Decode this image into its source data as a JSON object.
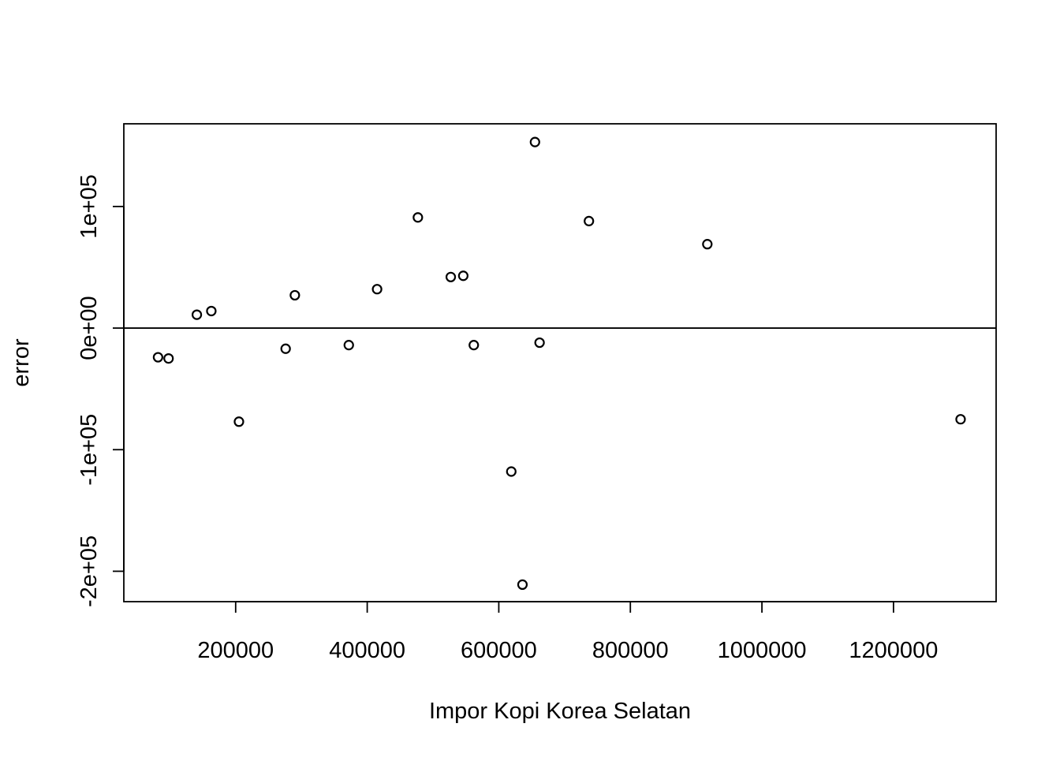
{
  "chart_data": {
    "type": "scatter",
    "title": "",
    "xlabel": "Impor Kopi Korea Selatan",
    "ylabel": "error",
    "xlim": [
      30000,
      1356000
    ],
    "ylim": [
      -225000,
      168000
    ],
    "x_ticks": [
      200000,
      400000,
      600000,
      800000,
      1000000,
      1200000
    ],
    "x_tick_labels": [
      "200000",
      "400000",
      "600000",
      "800000",
      "1000000",
      "1200000"
    ],
    "y_ticks": [
      -200000,
      -100000,
      0,
      100000
    ],
    "y_tick_labels": [
      "-2e+05",
      "-1e+05",
      "0e+00",
      "1e+05"
    ],
    "reference_line_y": 0,
    "grid": false,
    "legend": "none",
    "marker": "open-circle",
    "color": "#000000",
    "points": [
      {
        "x": 82000,
        "y": -24000
      },
      {
        "x": 98000,
        "y": -25000
      },
      {
        "x": 141000,
        "y": 11000
      },
      {
        "x": 163000,
        "y": 14000
      },
      {
        "x": 205000,
        "y": -77000
      },
      {
        "x": 276000,
        "y": -17000
      },
      {
        "x": 290000,
        "y": 27000
      },
      {
        "x": 372000,
        "y": -14000
      },
      {
        "x": 415000,
        "y": 32000
      },
      {
        "x": 477000,
        "y": 91000
      },
      {
        "x": 527000,
        "y": 42000
      },
      {
        "x": 546000,
        "y": 43000
      },
      {
        "x": 562000,
        "y": -14000
      },
      {
        "x": 619000,
        "y": -118000
      },
      {
        "x": 636000,
        "y": -211000
      },
      {
        "x": 655000,
        "y": 153000
      },
      {
        "x": 662000,
        "y": -12000
      },
      {
        "x": 737000,
        "y": 88000
      },
      {
        "x": 917000,
        "y": 69000
      },
      {
        "x": 1302000,
        "y": -75000
      }
    ]
  }
}
